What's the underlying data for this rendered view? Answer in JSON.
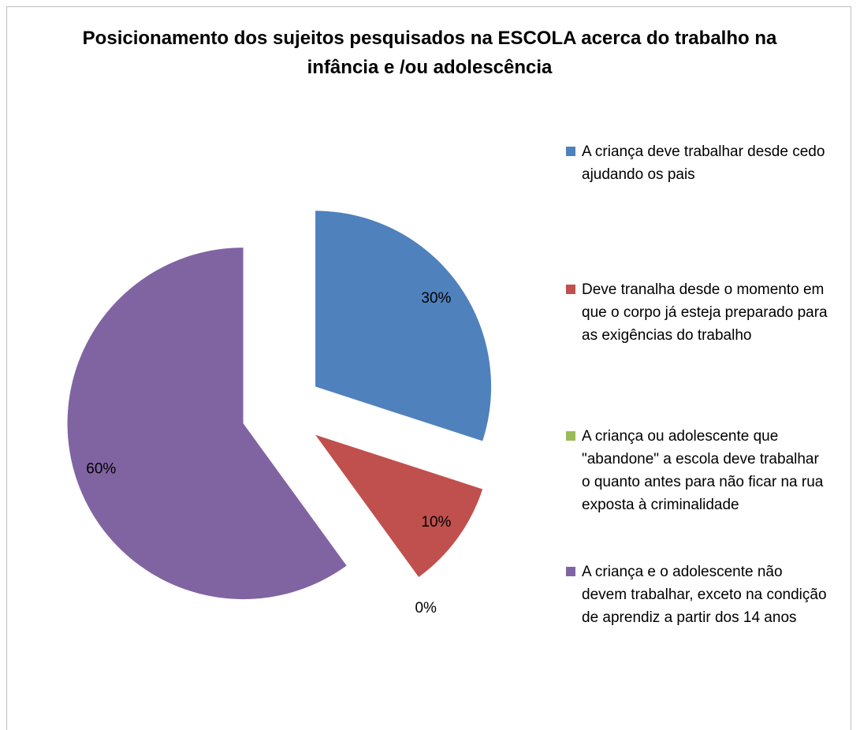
{
  "chart_data": {
    "type": "pie",
    "title": "Posicionamento dos sujeitos pesquisados na ESCOLA acerca do trabalho na infância e /ou adolescência",
    "categories": [
      "A criança deve trabalhar desde cedo ajudando os pais",
      "Deve tranalha desde o momento em que o corpo já esteja preparado para as exigências do trabalho",
      "A criança ou adolescente que \"abandone\" a escola deve trabalhar o quanto antes para não ficar na rua exposta à criminalidade",
      "A criança e o adolescente não devem trabalhar, exceto na condição de aprendiz a partir dos 14 anos"
    ],
    "values": [
      30,
      10,
      0,
      60
    ],
    "value_labels": [
      "30%",
      "10%",
      "0%",
      "60%"
    ],
    "colors": [
      "#4f81bd",
      "#c0504d",
      "#9bbb59",
      "#8064a2"
    ],
    "legend": "right"
  }
}
